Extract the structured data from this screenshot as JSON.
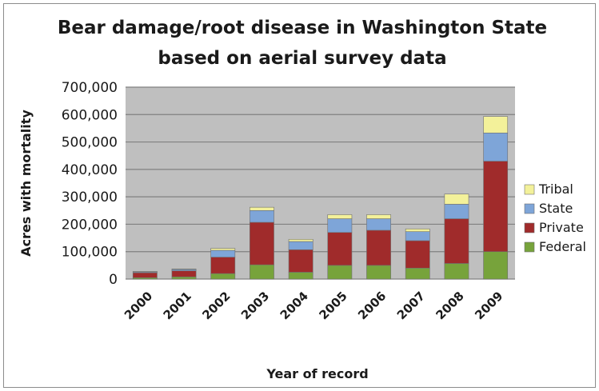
{
  "chart_data": {
    "type": "bar",
    "stacked": true,
    "title": "Bear damage/root disease in Washington State based on aerial survey data",
    "title_lines": [
      "Bear damage/root disease in Washington State",
      "based on aerial survey data"
    ],
    "xlabel": "Year of record",
    "ylabel": "Acres with mortality",
    "ylim": [
      0,
      700000
    ],
    "yticks": [
      0,
      100000,
      200000,
      300000,
      400000,
      500000,
      600000,
      700000
    ],
    "ytick_labels": [
      "0",
      "100,000",
      "200,000",
      "300,000",
      "400,000",
      "500,000",
      "600,000",
      "700,000"
    ],
    "categories": [
      "2000",
      "2001",
      "2002",
      "2003",
      "2004",
      "2005",
      "2006",
      "2007",
      "2008",
      "2009"
    ],
    "series": [
      {
        "name": "Federal",
        "color": "#77a33b",
        "values": [
          5000,
          8000,
          20000,
          52000,
          25000,
          50000,
          50000,
          40000,
          57000,
          100000
        ]
      },
      {
        "name": "Private",
        "color": "#a02b2b",
        "values": [
          18000,
          22000,
          60000,
          155000,
          82000,
          120000,
          128000,
          100000,
          163000,
          330000
        ]
      },
      {
        "name": "State",
        "color": "#7ea5d8",
        "values": [
          3000,
          5000,
          25000,
          43000,
          30000,
          50000,
          42000,
          33000,
          53000,
          103000
        ]
      },
      {
        "name": "Tribal",
        "color": "#f3f19a",
        "values": [
          2000,
          2000,
          7000,
          12000,
          8000,
          15000,
          15000,
          10000,
          37000,
          60000
        ]
      }
    ],
    "legend_position": "right",
    "grid": true
  }
}
